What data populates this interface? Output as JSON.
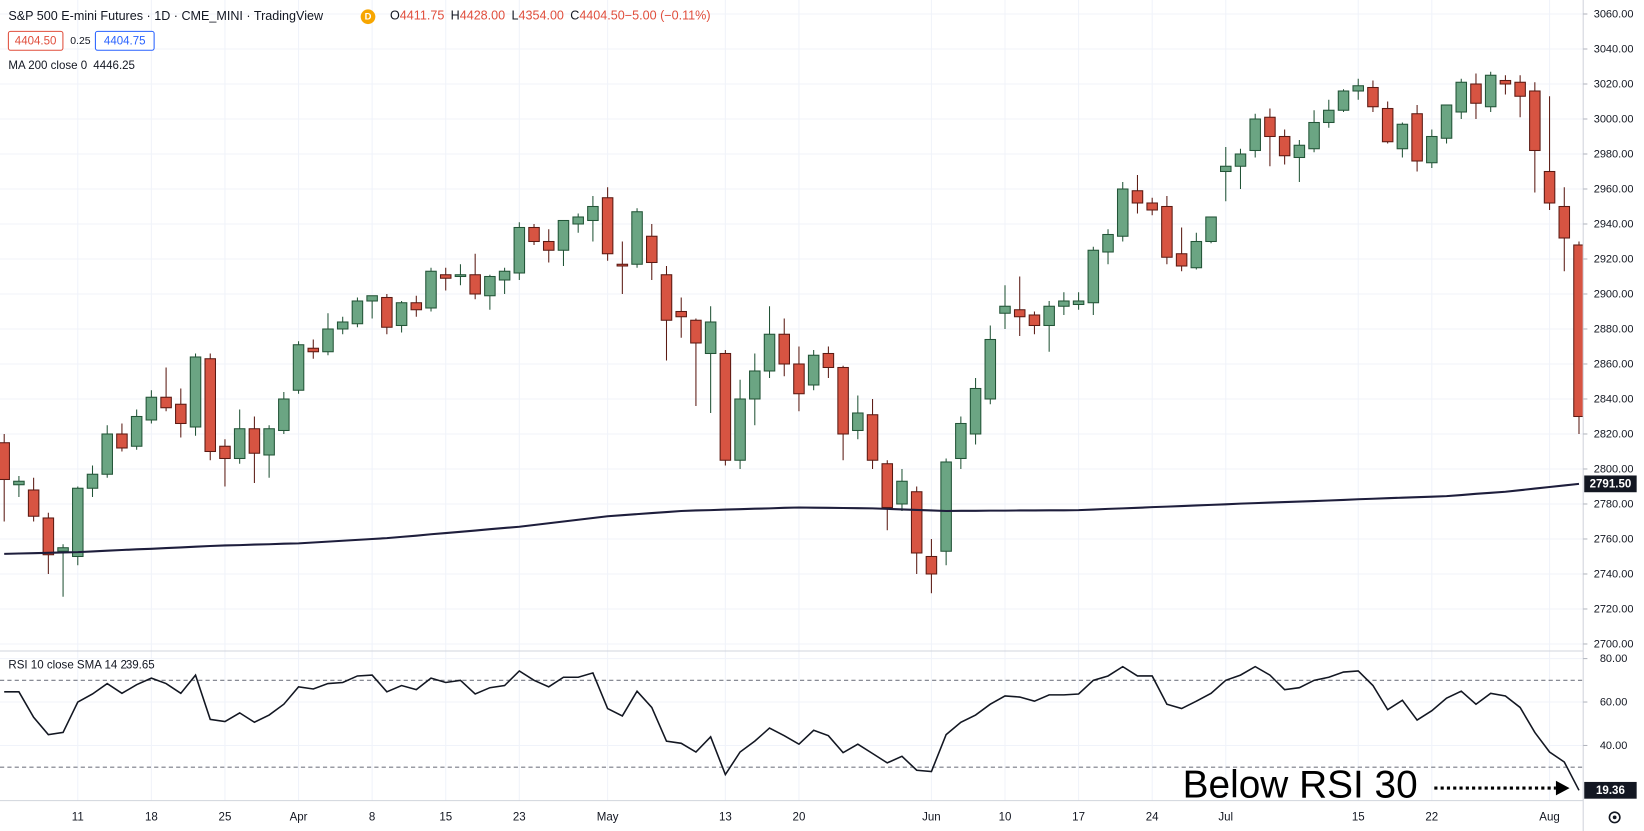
{
  "chart_data": [
    {
      "type": "candlestick",
      "title": "S&P 500 E-mini Futures · 1D · CME_MINI · TradingView",
      "badge": "D",
      "ohlc_readout": [
        [
          "O",
          "4411.75"
        ],
        [
          "H",
          "4428.00"
        ],
        [
          "L",
          "4354.00"
        ],
        [
          "C",
          "4404.50"
        ],
        [
          "",
          "−5.00 (−0.11%)"
        ]
      ],
      "bid": "4404.50",
      "spread": "0.25",
      "ask": "4404.75",
      "categories": [
        null,
        null,
        null,
        null,
        null,
        "11",
        null,
        null,
        null,
        null,
        "18",
        null,
        null,
        null,
        null,
        "25",
        null,
        null,
        null,
        null,
        "Apr",
        null,
        null,
        null,
        null,
        "8",
        null,
        null,
        null,
        null,
        "15",
        null,
        null,
        null,
        null,
        "23",
        null,
        null,
        null,
        null,
        null,
        "May",
        null,
        null,
        null,
        null,
        null,
        null,
        null,
        "13",
        null,
        null,
        null,
        null,
        "20",
        null,
        null,
        null,
        null,
        null,
        null,
        null,
        null,
        "Jun",
        null,
        null,
        null,
        null,
        "10",
        null,
        null,
        null,
        null,
        "17",
        null,
        null,
        null,
        null,
        "24",
        null,
        null,
        null,
        null,
        "Jul",
        null,
        null,
        null,
        null,
        null,
        null,
        null,
        null,
        "15",
        null,
        null,
        null,
        null,
        "22",
        null,
        null,
        null,
        null,
        null,
        null,
        null,
        "Aug",
        null,
        null
      ],
      "open": [
        2815,
        2791,
        2788,
        2772,
        2753,
        2750,
        2789,
        2797,
        2820,
        2813,
        2828,
        2841,
        2837,
        2824,
        2863,
        2813,
        2806,
        2823,
        2808,
        2822,
        2845,
        2869,
        2867,
        2880,
        2883,
        2896,
        2898,
        2882,
        2895,
        2892,
        2911,
        2910,
        2911,
        2899,
        2908,
        2912,
        2938,
        2930,
        2925,
        2940,
        2942,
        2955,
        2917,
        2917,
        2933,
        2911,
        2890,
        2885,
        2866,
        2866,
        2805,
        2840,
        2856,
        2877,
        2860,
        2848,
        2866,
        2858,
        2822,
        2831,
        2803,
        2780,
        2787,
        2750,
        2753,
        2806,
        2820,
        2840,
        2889,
        2891,
        2888,
        2882,
        2893,
        2894,
        2895,
        2924,
        2933,
        2959,
        2952,
        2950,
        2923,
        2915,
        2930,
        2970,
        2973,
        2982,
        3001,
        2990,
        2978,
        2983,
        2998,
        3005,
        3016,
        3018,
        3006,
        2983,
        3003,
        2975,
        2989,
        3004,
        3020,
        3007,
        3022,
        3021,
        3016,
        2970,
        2950,
        2928
      ],
      "high": [
        2820,
        2796,
        2795,
        2775,
        2757,
        2790,
        2802,
        2825,
        2826,
        2834,
        2845,
        2858,
        2846,
        2866,
        2866,
        2817,
        2834,
        2830,
        2825,
        2844,
        2873,
        2874,
        2889,
        2887,
        2898,
        2899,
        2900,
        2896,
        2899,
        2915,
        2915,
        2917,
        2923,
        2911,
        2915,
        2941,
        2940,
        2937,
        2942,
        2946,
        2956,
        2961,
        2930,
        2949,
        2940,
        2916,
        2898,
        2886,
        2893,
        2868,
        2851,
        2866,
        2893,
        2886,
        2870,
        2868,
        2870,
        2859,
        2842,
        2840,
        2805,
        2800,
        2790,
        2760,
        2806,
        2830,
        2852,
        2882,
        2905,
        2910,
        2890,
        2896,
        2901,
        2901,
        2927,
        2937,
        2964,
        2968,
        2955,
        2956,
        2938,
        2935,
        2944,
        2984,
        2983,
        3003,
        3006,
        2994,
        2988,
        3005,
        3011,
        3017,
        3023,
        3022,
        3010,
        2998,
        3008,
        2994,
        3008,
        3023,
        3026,
        3027,
        3025,
        3025,
        3021,
        3013,
        2961,
        2930
      ],
      "low": [
        2770,
        2784,
        2770,
        2740,
        2727,
        2745,
        2784,
        2795,
        2810,
        2811,
        2826,
        2833,
        2818,
        2819,
        2805,
        2790,
        2803,
        2792,
        2795,
        2820,
        2843,
        2863,
        2865,
        2877,
        2881,
        2886,
        2877,
        2878,
        2887,
        2890,
        2902,
        2905,
        2897,
        2891,
        2900,
        2908,
        2928,
        2918,
        2916,
        2935,
        2930,
        2919,
        2900,
        2915,
        2908,
        2862,
        2875,
        2836,
        2832,
        2802,
        2800,
        2825,
        2852,
        2853,
        2833,
        2845,
        2852,
        2805,
        2817,
        2800,
        2765,
        2776,
        2740,
        2729,
        2745,
        2800,
        2814,
        2837,
        2880,
        2876,
        2877,
        2867,
        2888,
        2891,
        2888,
        2917,
        2930,
        2946,
        2945,
        2917,
        2913,
        2914,
        2929,
        2953,
        2960,
        2978,
        2973,
        2974,
        2964,
        2981,
        2995,
        3004,
        3011,
        3004,
        2986,
        2978,
        2970,
        2972,
        2986,
        3000,
        3000,
        3004,
        3014,
        3001,
        2958,
        2948,
        2913,
        2820
      ],
      "close": [
        2794,
        2793,
        2773,
        2751,
        2755,
        2789,
        2797,
        2820,
        2812,
        2830,
        2841,
        2835,
        2826,
        2864,
        2810,
        2806,
        2823,
        2809,
        2823,
        2840,
        2871,
        2867,
        2880,
        2884,
        2896,
        2899,
        2881,
        2895,
        2891,
        2913,
        2909,
        2911,
        2900,
        2910,
        2913,
        2938,
        2930,
        2925,
        2942,
        2944,
        2950,
        2923,
        2916,
        2947,
        2918,
        2885,
        2887,
        2872,
        2884,
        2805,
        2840,
        2856,
        2877,
        2860,
        2843,
        2865,
        2858,
        2820,
        2832,
        2805,
        2778,
        2793,
        2752,
        2740,
        2804,
        2826,
        2846,
        2874,
        2893,
        2887,
        2882,
        2893,
        2896,
        2896,
        2925,
        2934,
        2960,
        2952,
        2948,
        2921,
        2916,
        2930,
        2944,
        2973,
        2980,
        3000,
        2990,
        2979,
        2985,
        2998,
        3005,
        3016,
        3019,
        3007,
        2987,
        2997,
        2976,
        2990,
        3008,
        3021,
        3009,
        3025,
        3020,
        3013,
        2982,
        2952,
        2932,
        2830
      ],
      "up_color": "#6ba583",
      "up_border": "#225437",
      "down_color": "#d75442",
      "down_border": "#5b1a13",
      "series": [
        {
          "name": "MA 200 close 0",
          "readout": 4446.25,
          "last_label": "2791.50",
          "color": "#1e1e3c",
          "values": [
            2751.5,
            2751.7,
            2751.9,
            2752.1,
            2752.3,
            2752.5,
            2752.9,
            2753.3,
            2753.7,
            2754.1,
            2754.4,
            2754.8,
            2755.2,
            2755.6,
            2756.0,
            2756.3,
            2756.5,
            2756.8,
            2757.0,
            2757.3,
            2757.5,
            2758.0,
            2758.5,
            2759.0,
            2759.5,
            2760.0,
            2760.5,
            2761.2,
            2761.9,
            2762.7,
            2763.4,
            2764.1,
            2764.8,
            2765.6,
            2766.3,
            2767.0,
            2768,
            2769,
            2770,
            2771,
            2772,
            2773,
            2773.6,
            2774.2,
            2774.8,
            2775.4,
            2776.0,
            2776.3,
            2776.5,
            2776.8,
            2777.0,
            2777.3,
            2777.5,
            2777.8,
            2778.0,
            2777.9,
            2777.8,
            2777.7,
            2777.6,
            2777.5,
            2777.2,
            2776.9,
            2776.6,
            2776.3,
            2776.0,
            2776.1,
            2776.1,
            2776.2,
            2776.2,
            2776.3,
            2776.3,
            2776.4,
            2776.4,
            2776.5,
            2776.8,
            2777.2,
            2777.5,
            2777.8,
            2778.2,
            2778.5,
            2778.8,
            2779.2,
            2779.5,
            2779.8,
            2780.2,
            2780.5,
            2780.8,
            2781.1,
            2781.4,
            2781.7,
            2782.0,
            2782.3,
            2782.7,
            2783.0,
            2783.3,
            2783.6,
            2783.9,
            2784.2,
            2784.5,
            2785.1,
            2785.8,
            2786.4,
            2787.0,
            2787.9,
            2788.8,
            2789.7,
            2790.6,
            2791.5
          ]
        }
      ],
      "ylim": [
        2696,
        3068
      ],
      "yticks": [
        {
          "value": 2700,
          "label": "2700.00"
        },
        {
          "value": 2720,
          "label": "2720.00"
        },
        {
          "value": 2740,
          "label": "2740.00"
        },
        {
          "value": 2760,
          "label": "2760.00"
        },
        {
          "value": 2780,
          "label": "2780.00"
        },
        {
          "value": 2800,
          "label": "2800.00"
        },
        {
          "value": 2820,
          "label": "2820.00"
        },
        {
          "value": 2840,
          "label": "2840.00"
        },
        {
          "value": 2860,
          "label": "2860.00"
        },
        {
          "value": 2880,
          "label": "2880.00"
        },
        {
          "value": 2900,
          "label": "2900.00"
        },
        {
          "value": 2920,
          "label": "2920.00"
        },
        {
          "value": 2940,
          "label": "2940.00"
        },
        {
          "value": 2960,
          "label": "2960.00"
        },
        {
          "value": 2980,
          "label": "2980.00"
        },
        {
          "value": 3000,
          "label": "3000.00"
        },
        {
          "value": 3020,
          "label": "3020.00"
        },
        {
          "value": 3040,
          "label": "3040.00"
        },
        {
          "value": 3060,
          "label": "3060.00"
        }
      ],
      "grid": true
    },
    {
      "type": "line",
      "series": [
        {
          "name": "RSI 10 close SMA 14 2",
          "readout": 39.65,
          "color": "#131722",
          "values": [
            64.7,
            64.7,
            53,
            45,
            46,
            60,
            63.7,
            68.5,
            64,
            68,
            71,
            68.5,
            64,
            72.4,
            52,
            51,
            55,
            50.7,
            54,
            59,
            67,
            66,
            68.5,
            69,
            72,
            72.4,
            64.7,
            67.6,
            65.7,
            71,
            69,
            70,
            63.7,
            66.6,
            67.6,
            74.3,
            70,
            67,
            71.4,
            71.4,
            73.4,
            57,
            53.6,
            65,
            57.5,
            42,
            41,
            37,
            44,
            26.6,
            37,
            42,
            48,
            44.5,
            40.6,
            47,
            44.5,
            36.7,
            40.6,
            36.3,
            32,
            35,
            28.6,
            28,
            45,
            50.7,
            54,
            59,
            62.8,
            62.3,
            60.4,
            63.3,
            63.3,
            63.7,
            70,
            72,
            76.3,
            72,
            72,
            59,
            57,
            60.4,
            64,
            70,
            72.4,
            76.3,
            72.4,
            65.7,
            66.6,
            70,
            71.4,
            73.8,
            74.3,
            67.6,
            56.5,
            60.8,
            51.7,
            56,
            61.8,
            65,
            59,
            64,
            62.8,
            57.5,
            46,
            37,
            32.4,
            19.36
          ]
        }
      ],
      "levels": [
        70,
        30
      ],
      "annotation": "Below RSI 30",
      "ylim": [
        14.6,
        83.5
      ],
      "yticks": [
        {
          "value": 40,
          "label": "40.00"
        },
        {
          "value": 60,
          "label": "60.00"
        },
        {
          "value": 80,
          "label": "80.00"
        }
      ],
      "grid": true
    }
  ]
}
